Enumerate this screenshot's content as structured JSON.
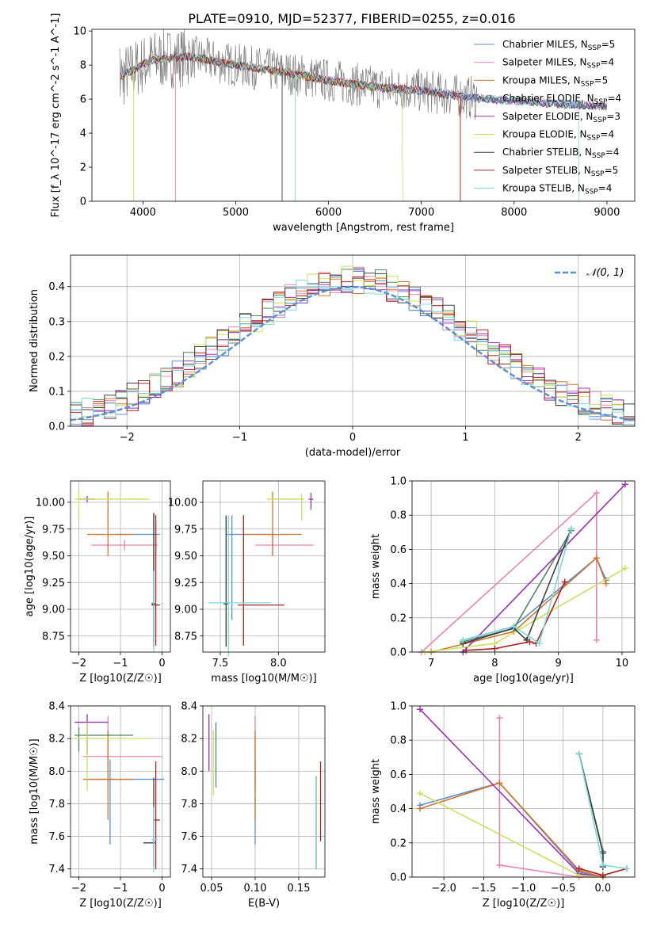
{
  "colors": [
    "#5b8fd8",
    "#e884b3",
    "#d3762a",
    "#4a8a5e",
    "#9b30b8",
    "#c9e05a",
    "#404040",
    "#b22020",
    "#7dd8dc"
  ],
  "legend_entries": [
    "Chabrier MILES, N_SSP=5",
    "Salpeter MILES, N_SSP=4",
    "Kroupa MILES, N_SSP=5",
    "Chabrier ELODIE, N_SSP=4",
    "Salpeter ELODIE, N_SSP=3",
    "Kroupa ELODIE, N_SSP=4",
    "Chabrier STELIB, N_SSP=4",
    "Salpeter STELIB, N_SSP=5",
    "Kroupa STELIB, N_SSP=4"
  ],
  "chart_data": [
    {
      "id": "spectrum",
      "type": "line",
      "title": "PLATE=0910, MJD=52377, FIBERID=0255, z=0.016",
      "xlabel": "wavelength [Angstrom, rest frame]",
      "ylabel": "Flux [f_λ 10^-17 erg cm^-2 s^-1 A^-1]",
      "xlim": [
        3450,
        9300
      ],
      "ylim": [
        0,
        10.1
      ],
      "xticks": [
        "4000",
        "5000",
        "6000",
        "7000",
        "8000",
        "9000"
      ],
      "yticks": [
        "0",
        "2",
        "4",
        "6",
        "8",
        "10"
      ],
      "data_envelope": {
        "x": [
          3750,
          4100,
          4500,
          5000,
          5500,
          6000,
          6500,
          7000,
          7500,
          8000,
          8500,
          9000
        ],
        "y": [
          7.3,
          8.3,
          8.5,
          8.0,
          7.6,
          7.1,
          6.7,
          6.5,
          6.1,
          5.9,
          5.7,
          5.6
        ]
      },
      "grid": false,
      "legend_position": "upper right"
    },
    {
      "id": "residuals",
      "type": "step",
      "xlabel": "(data-model)/error",
      "ylabel": "Normed distribution",
      "xlim": [
        -2.5,
        2.5
      ],
      "ylim": [
        0,
        0.49
      ],
      "xticks": [
        "−2",
        "−1",
        "0",
        "1",
        "2"
      ],
      "yticks": [
        "0.0",
        "0.1",
        "0.2",
        "0.3",
        "0.4"
      ],
      "normal_label": "𝒩(0, 1)",
      "grid": true,
      "legend_position": "upper right"
    },
    {
      "id": "age_vs_Z",
      "type": "errorbar",
      "xlabel": "Z [log10(Z/Z☉)]",
      "ylabel": "age [log10(age/yr)]",
      "xlim": [
        -2.2,
        0.2
      ],
      "ylim": [
        8.6,
        10.2
      ],
      "xticks": [
        "−2",
        "−1",
        "0"
      ],
      "yticks": [
        "8.75",
        "9.00",
        "9.25",
        "9.50",
        "9.75",
        "10.00"
      ],
      "points": [
        {
          "s": 0,
          "x": -0.15,
          "y": 9.7,
          "xe": [
            0.95,
            0.1
          ],
          "ye": [
            0.2,
            0.12
          ]
        },
        {
          "s": 1,
          "x": -0.9,
          "y": 9.6,
          "xe": [
            0.8,
            0.8
          ],
          "ye": [
            0.05,
            0.05
          ]
        },
        {
          "s": 2,
          "x": -1.3,
          "y": 9.7,
          "xe": [
            0.5,
            0.6
          ],
          "ye": [
            0.2,
            0.4
          ]
        },
        {
          "s": 3,
          "x": -0.2,
          "y": 9.05,
          "xe": [
            0.05,
            0.05
          ],
          "ye": [
            0.35,
            0.85
          ]
        },
        {
          "s": 4,
          "x": -1.8,
          "y": 10.03,
          "xe": [
            0.2,
            0.2
          ],
          "ye": [
            0.03,
            0.03
          ]
        },
        {
          "s": 5,
          "x": -2.0,
          "y": 10.03,
          "xe": [
            0.1,
            1.7
          ],
          "ye": [
            0.2,
            0.08
          ]
        },
        {
          "s": 6,
          "x": -0.2,
          "y": 9.05,
          "xe": [
            0.05,
            0.05
          ],
          "ye": [
            0.4,
            0.85
          ]
        },
        {
          "s": 7,
          "x": -0.15,
          "y": 9.04,
          "xe": [
            0.1,
            0.1
          ],
          "ye": [
            0.38,
            0.84
          ]
        },
        {
          "s": 8,
          "x": -0.2,
          "y": 9.06,
          "xe": [
            0.05,
            0.05
          ],
          "ye": [
            0.45,
            0.3
          ]
        }
      ],
      "grid": true
    },
    {
      "id": "age_vs_mass",
      "type": "errorbar",
      "xlabel": "mass [log10(M/M☉)]",
      "ylabel": "",
      "xlim": [
        7.35,
        8.4
      ],
      "ylim": [
        8.6,
        10.2
      ],
      "xticks": [
        "7.5",
        "8.0"
      ],
      "yticks": [
        "8.75",
        "9.00",
        "9.25",
        "9.50",
        "9.75",
        "10.00"
      ],
      "points": [
        {
          "s": 0,
          "x": 7.6,
          "y": 9.7,
          "xe": [
            0.05,
            0.35
          ],
          "ye": [
            0.8,
            0.18
          ]
        },
        {
          "s": 1,
          "x": 7.95,
          "y": 9.6,
          "xe": [
            0.15,
            0.35
          ],
          "ye": [
            0.1,
            0.12
          ]
        },
        {
          "s": 2,
          "x": 7.95,
          "y": 9.7,
          "xe": [
            0.25,
            0.25
          ],
          "ye": [
            0.2,
            0.4
          ]
        },
        {
          "s": 3,
          "x": 7.55,
          "y": 9.06,
          "xe": [
            0.02,
            0.02
          ],
          "ye": [
            0.4,
            0.82
          ]
        },
        {
          "s": 4,
          "x": 8.28,
          "y": 10.03,
          "xe": [
            0.02,
            0.02
          ],
          "ye": [
            0.1,
            0.06
          ]
        },
        {
          "s": 5,
          "x": 8.2,
          "y": 10.03,
          "xe": [
            0.3,
            0.02
          ],
          "ye": [
            0.2,
            0.05
          ]
        },
        {
          "s": 6,
          "x": 7.55,
          "y": 9.05,
          "xe": [
            0.02,
            0.02
          ],
          "ye": [
            0.4,
            0.82
          ]
        },
        {
          "s": 7,
          "x": 7.7,
          "y": 9.04,
          "xe": [
            0.05,
            0.35
          ],
          "ye": [
            0.38,
            0.84
          ]
        },
        {
          "s": 8,
          "x": 7.57,
          "y": 9.06,
          "xe": [
            0.17,
            0.37
          ],
          "ye": [
            0.5,
            0.82
          ]
        }
      ],
      "grid": true
    },
    {
      "id": "weight_vs_age",
      "type": "line",
      "xlabel": "age [log10(age/yr)]",
      "ylabel": "mass weight",
      "xlim": [
        6.7,
        10.2
      ],
      "ylim": [
        0,
        1.0
      ],
      "xticks": [
        "7",
        "8",
        "9",
        "10"
      ],
      "yticks": [
        "0.0",
        "0.2",
        "0.4",
        "0.6",
        "0.8",
        "1.0"
      ],
      "series": [
        {
          "s": 0,
          "x": [
            7.5,
            8.3,
            9.6,
            9.75
          ],
          "y": [
            0.07,
            0.15,
            0.55,
            0.42
          ]
        },
        {
          "s": 1,
          "x": 6.85,
          "y": 0.0,
          "x2": 9.6,
          "y2": 0.93,
          "x_list": [
            6.85,
            9.6,
            9.6
          ],
          "y_list": [
            0.0,
            0.93,
            0.07
          ]
        },
        {
          "s": 2,
          "x_list": [
            7.0,
            8.3,
            9.6,
            9.75
          ],
          "y_list": [
            0.0,
            0.12,
            0.55,
            0.4
          ]
        },
        {
          "s": 3,
          "x_list": [
            7.5,
            8.3,
            9.2
          ],
          "y_list": [
            0.06,
            0.14,
            0.71
          ]
        },
        {
          "s": 4,
          "x_list": [
            7.5,
            10.05
          ],
          "y_list": [
            0.0,
            0.98
          ]
        },
        {
          "s": 5,
          "x_list": [
            6.9,
            8.0,
            10.05
          ],
          "y_list": [
            0.0,
            0.05,
            0.49
          ]
        },
        {
          "s": 6,
          "x_list": [
            7.5,
            8.3,
            8.5,
            9.2
          ],
          "y_list": [
            0.05,
            0.14,
            0.07,
            0.72
          ]
        },
        {
          "s": 7,
          "x_list": [
            7.55,
            8.0,
            8.55,
            8.65,
            9.1
          ],
          "y_list": [
            0.01,
            0.02,
            0.06,
            0.05,
            0.41
          ]
        },
        {
          "s": 8,
          "x_list": [
            7.5,
            8.3,
            8.7,
            9.2
          ],
          "y_list": [
            0.07,
            0.15,
            0.05,
            0.72
          ]
        }
      ],
      "grid": true
    },
    {
      "id": "mass_vs_Z",
      "type": "errorbar",
      "xlabel": "Z [log10(Z/Z☉)]",
      "ylabel": "mass [log10(M/M☉)]",
      "xlim": [
        -2.2,
        0.2
      ],
      "ylim": [
        7.35,
        8.4
      ],
      "xticks": [
        "−2",
        "−1",
        "0"
      ],
      "yticks": [
        "7.4",
        "7.6",
        "7.8",
        "8.0",
        "8.2",
        "8.4"
      ],
      "points": [
        {
          "s": 0,
          "x": -1.25,
          "y": 7.95,
          "xe": [
            0.6,
            1.3
          ],
          "ye": [
            0.4,
            0.12
          ]
        },
        {
          "s": 1,
          "x": -1.3,
          "y": 8.09,
          "xe": [
            0.6,
            1.3
          ],
          "ye": [
            0.15,
            0.25
          ]
        },
        {
          "s": 2,
          "x": -1.3,
          "y": 7.95,
          "xe": [
            0.6,
            0.6
          ],
          "ye": [
            0.25,
            0.3
          ]
        },
        {
          "s": 3,
          "x": -2.0,
          "y": 8.22,
          "xe": [
            0.1,
            1.3
          ],
          "ye": [
            0.1,
            0.05
          ]
        },
        {
          "s": 4,
          "x": -1.8,
          "y": 8.3,
          "xe": [
            0.3,
            0.5
          ],
          "ye": [
            0.2,
            0.05
          ]
        },
        {
          "s": 5,
          "x": -1.8,
          "y": 8.2,
          "xe": [
            0.3,
            1.5
          ],
          "ye": [
            0.32,
            0.1
          ]
        },
        {
          "s": 6,
          "x": -0.2,
          "y": 7.56,
          "xe": [
            0.25,
            0.05
          ],
          "ye": [
            0.15,
            0.4
          ]
        },
        {
          "s": 7,
          "x": -0.15,
          "y": 7.7,
          "xe": [
            0.05,
            0.1
          ],
          "ye": [
            0.3,
            0.36
          ]
        },
        {
          "s": 8,
          "x": -0.2,
          "y": 7.58,
          "xe": [
            0.05,
            0.1
          ],
          "ye": [
            0.2,
            0.2
          ]
        }
      ],
      "grid": true
    },
    {
      "id": "mass_vs_ebv",
      "type": "errorbar",
      "xlabel": "E(B-V)",
      "ylabel": "",
      "xlim": [
        0.04,
        0.18
      ],
      "ylim": [
        7.35,
        8.4
      ],
      "xticks": [
        "0.05",
        "0.10",
        "0.15"
      ],
      "yticks": [
        "7.4",
        "7.6",
        "7.8",
        "8.0",
        "8.2",
        "8.4"
      ],
      "points": [
        {
          "s": 0,
          "x": 0.1,
          "y": 7.95,
          "xe": [
            0,
            0
          ],
          "ye": [
            0.4,
            0.12
          ]
        },
        {
          "s": 1,
          "x": 0.1,
          "y": 8.09,
          "xe": [
            0,
            0
          ],
          "ye": [
            0.2,
            0.25
          ]
        },
        {
          "s": 2,
          "x": 0.1,
          "y": 7.95,
          "xe": [
            0,
            0
          ],
          "ye": [
            0.25,
            0.3
          ]
        },
        {
          "s": 3,
          "x": 0.055,
          "y": 8.2,
          "xe": [
            0,
            0
          ],
          "ye": [
            0.3,
            0.1
          ]
        },
        {
          "s": 4,
          "x": 0.047,
          "y": 8.3,
          "xe": [
            0,
            0
          ],
          "ye": [
            0.3,
            0.05
          ]
        },
        {
          "s": 5,
          "x": 0.052,
          "y": 8.2,
          "xe": [
            0,
            0
          ],
          "ye": [
            0.35,
            0.05
          ]
        },
        {
          "s": 6,
          "x": 0.17,
          "y": 7.8,
          "xe": [
            0,
            0
          ],
          "ye": [
            0.4,
            0.17
          ]
        },
        {
          "s": 7,
          "x": 0.175,
          "y": 7.8,
          "xe": [
            0,
            0
          ],
          "ye": [
            0.23,
            0.26
          ]
        },
        {
          "s": 8,
          "x": 0.17,
          "y": 7.7,
          "xe": [
            0,
            0
          ],
          "ye": [
            0.3,
            0.27
          ]
        }
      ],
      "grid": true
    },
    {
      "id": "weight_vs_Z",
      "type": "line",
      "xlabel": "Z [log10(Z/Z☉)]",
      "ylabel": "mass weight",
      "xlim": [
        -2.4,
        0.4
      ],
      "ylim": [
        0,
        1.0
      ],
      "xticks": [
        "−2.0",
        "−1.5",
        "−1.0",
        "−0.5",
        "0.0"
      ],
      "yticks": [
        "0.0",
        "0.2",
        "0.4",
        "0.6",
        "0.8",
        "1.0"
      ],
      "series": [
        {
          "s": 0,
          "x_list": [
            -2.3,
            -1.3,
            -0.3,
            0.0
          ],
          "y_list": [
            0.42,
            0.55,
            0.03,
            0.0
          ]
        },
        {
          "s": 1,
          "x_list": [
            -1.3,
            -1.3,
            -0.3,
            0.0
          ],
          "y_list": [
            0.93,
            0.07,
            0.0,
            0.0
          ]
        },
        {
          "s": 2,
          "x_list": [
            -2.3,
            -1.3,
            -0.3,
            0.0
          ],
          "y_list": [
            0.4,
            0.55,
            0.04,
            0.0
          ]
        },
        {
          "s": 3,
          "x_list": [
            -0.3,
            0.0,
            0.0
          ],
          "y_list": [
            0.72,
            0.15,
            0.06
          ]
        },
        {
          "s": 4,
          "x_list": [
            -2.3,
            -0.3,
            0.0
          ],
          "y_list": [
            0.98,
            0.02,
            0.0
          ]
        },
        {
          "s": 5,
          "x_list": [
            -2.3,
            -0.3,
            0.0
          ],
          "y_list": [
            0.49,
            0.01,
            0.0
          ]
        },
        {
          "s": 6,
          "x_list": [
            -0.3,
            0.0,
            0.0
          ],
          "y_list": [
            0.72,
            0.14,
            0.06
          ]
        },
        {
          "s": 7,
          "x_list": [
            -0.3,
            0.0,
            0.3
          ],
          "y_list": [
            0.05,
            0.01,
            0.05
          ]
        },
        {
          "s": 8,
          "x_list": [
            -0.3,
            0.0,
            0.3
          ],
          "y_list": [
            0.72,
            0.07,
            0.05
          ]
        }
      ],
      "grid": true
    }
  ]
}
